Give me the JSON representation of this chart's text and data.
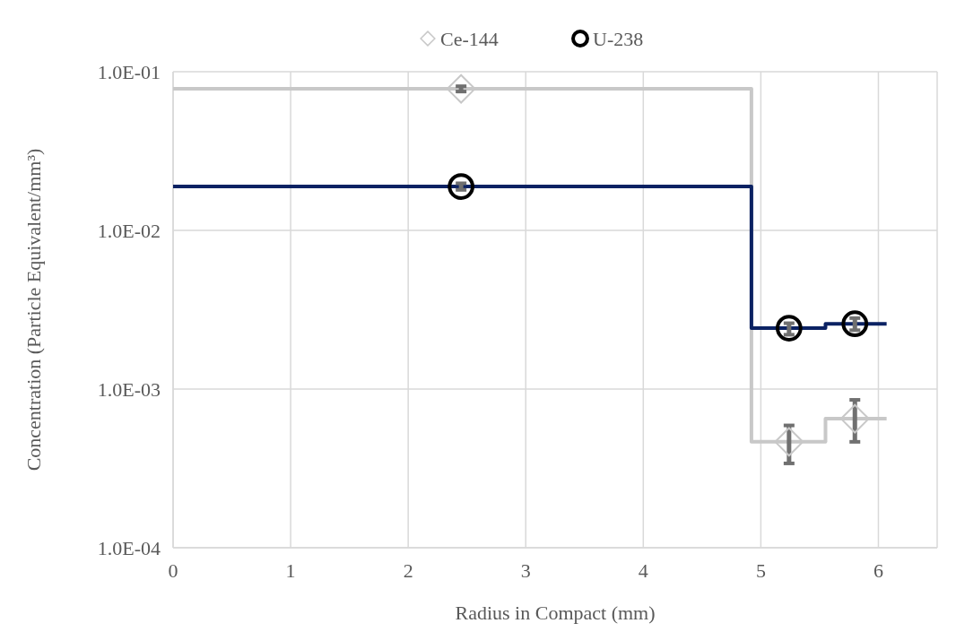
{
  "chart_data": {
    "type": "scatter",
    "xlabel": "Radius in Compact (mm)",
    "ylabel": "Concentration (Particle Equivalent/mm³)",
    "log": "y",
    "grid": true,
    "legend": "top",
    "xlim": [
      0,
      6.5
    ],
    "xticks": [
      0,
      1,
      2,
      3,
      4,
      5,
      6
    ],
    "ylim": [
      0.0001,
      0.1
    ],
    "yticks": [
      {
        "value": 0.0001,
        "label": "1.0E-04"
      },
      {
        "value": 0.001,
        "label": "1.0E-03"
      },
      {
        "value": 0.01,
        "label": "1.0E-02"
      },
      {
        "value": 0.1,
        "label": "1.0E-01"
      }
    ],
    "series": [
      {
        "type": "step",
        "color": "#c8c8c8",
        "marker": "none",
        "x": [
          0,
          4.92,
          5.55,
          6.07
        ],
        "values": [
          0.078,
          0.000465,
          0.00065,
          0.00065
        ]
      },
      {
        "type": "step",
        "color": "#0b2263",
        "marker": "none",
        "x": [
          0,
          4.92,
          5.55,
          6.07
        ],
        "values": [
          0.0189,
          0.00242,
          0.00258,
          0.00258
        ]
      },
      {
        "name": "Ce-144",
        "color": "#c8c8c8",
        "marker": "diamond",
        "x": [
          2.45,
          5.24,
          5.8
        ],
        "values": [
          0.078,
          0.000465,
          0.00065
        ],
        "errors": [
          [
            0.075,
            0.081
          ],
          [
            0.00034,
            0.00059
          ],
          [
            0.000465,
            0.000855
          ]
        ]
      },
      {
        "name": "U-238",
        "color": "#000000",
        "marker": "circle",
        "x": [
          2.45,
          5.24,
          5.8
        ],
        "values": [
          0.0189,
          0.00242,
          0.00258
        ],
        "errors": [
          [
            0.018,
            0.0198
          ],
          [
            0.0022,
            0.0026
          ],
          [
            0.00235,
            0.0028
          ]
        ]
      }
    ]
  }
}
